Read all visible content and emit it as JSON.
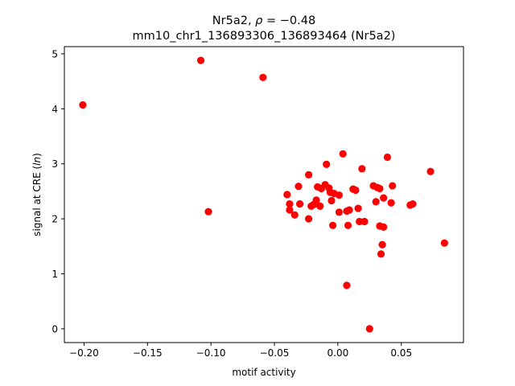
{
  "chart_data": {
    "type": "scatter",
    "title_line1_prefix": "Nr5a2, ",
    "title_line1_rho": "ρ",
    "title_line1_value": " = −0.48",
    "title_line2": "mm10_chr1_136893306_136893464 (Nr5a2)",
    "xlabel": "motif activity",
    "ylabel_prefix": "signal at CRE (",
    "ylabel_italic": "ln",
    "ylabel_suffix": ")",
    "xlim": [
      -0.2155,
      0.099
    ],
    "ylim": [
      -0.25,
      5.13
    ],
    "x_ticks": [
      -0.2,
      -0.15,
      -0.1,
      -0.05,
      0.0,
      0.05
    ],
    "x_tick_labels": [
      "−0.20",
      "−0.15",
      "−0.10",
      "−0.05",
      "0.00",
      "0.05"
    ],
    "y_ticks": [
      0,
      1,
      2,
      3,
      4,
      5
    ],
    "y_tick_labels": [
      "0",
      "1",
      "2",
      "3",
      "4",
      "5"
    ],
    "grid": false,
    "legend": "none",
    "point_color": "#ff0000",
    "points": [
      {
        "x": -0.201,
        "y": 4.07
      },
      {
        "x": -0.108,
        "y": 4.88
      },
      {
        "x": -0.059,
        "y": 4.57
      },
      {
        "x": -0.102,
        "y": 2.13
      },
      {
        "x": -0.04,
        "y": 2.44
      },
      {
        "x": -0.038,
        "y": 2.27
      },
      {
        "x": -0.038,
        "y": 2.16
      },
      {
        "x": -0.034,
        "y": 2.07
      },
      {
        "x": -0.031,
        "y": 2.59
      },
      {
        "x": -0.03,
        "y": 2.27
      },
      {
        "x": -0.023,
        "y": 2.8
      },
      {
        "x": -0.023,
        "y": 2.0
      },
      {
        "x": -0.021,
        "y": 2.23
      },
      {
        "x": -0.019,
        "y": 2.26
      },
      {
        "x": -0.017,
        "y": 2.34
      },
      {
        "x": -0.016,
        "y": 2.58
      },
      {
        "x": -0.014,
        "y": 2.23
      },
      {
        "x": -0.013,
        "y": 2.55
      },
      {
        "x": -0.01,
        "y": 2.62
      },
      {
        "x": -0.009,
        "y": 2.99
      },
      {
        "x": -0.007,
        "y": 2.56
      },
      {
        "x": -0.006,
        "y": 2.48
      },
      {
        "x": -0.005,
        "y": 2.33
      },
      {
        "x": -0.004,
        "y": 1.88
      },
      {
        "x": -0.003,
        "y": 2.46
      },
      {
        "x": 0.001,
        "y": 2.43
      },
      {
        "x": 0.001,
        "y": 2.12
      },
      {
        "x": 0.004,
        "y": 3.18
      },
      {
        "x": 0.007,
        "y": 0.79
      },
      {
        "x": 0.007,
        "y": 2.14
      },
      {
        "x": 0.008,
        "y": 1.88
      },
      {
        "x": 0.009,
        "y": 2.16
      },
      {
        "x": 0.012,
        "y": 2.54
      },
      {
        "x": 0.014,
        "y": 2.52
      },
      {
        "x": 0.016,
        "y": 2.19
      },
      {
        "x": 0.017,
        "y": 1.95
      },
      {
        "x": 0.019,
        "y": 2.91
      },
      {
        "x": 0.021,
        "y": 1.95
      },
      {
        "x": 0.025,
        "y": 0.0
      },
      {
        "x": 0.028,
        "y": 2.6
      },
      {
        "x": 0.03,
        "y": 2.31
      },
      {
        "x": 0.031,
        "y": 2.57
      },
      {
        "x": 0.033,
        "y": 2.55
      },
      {
        "x": 0.033,
        "y": 1.87
      },
      {
        "x": 0.034,
        "y": 1.36
      },
      {
        "x": 0.035,
        "y": 1.53
      },
      {
        "x": 0.036,
        "y": 2.38
      },
      {
        "x": 0.036,
        "y": 1.85
      },
      {
        "x": 0.039,
        "y": 3.12
      },
      {
        "x": 0.042,
        "y": 2.29
      },
      {
        "x": 0.043,
        "y": 2.6
      },
      {
        "x": 0.057,
        "y": 2.25
      },
      {
        "x": 0.059,
        "y": 2.27
      },
      {
        "x": 0.073,
        "y": 2.86
      },
      {
        "x": 0.084,
        "y": 1.56
      }
    ]
  }
}
